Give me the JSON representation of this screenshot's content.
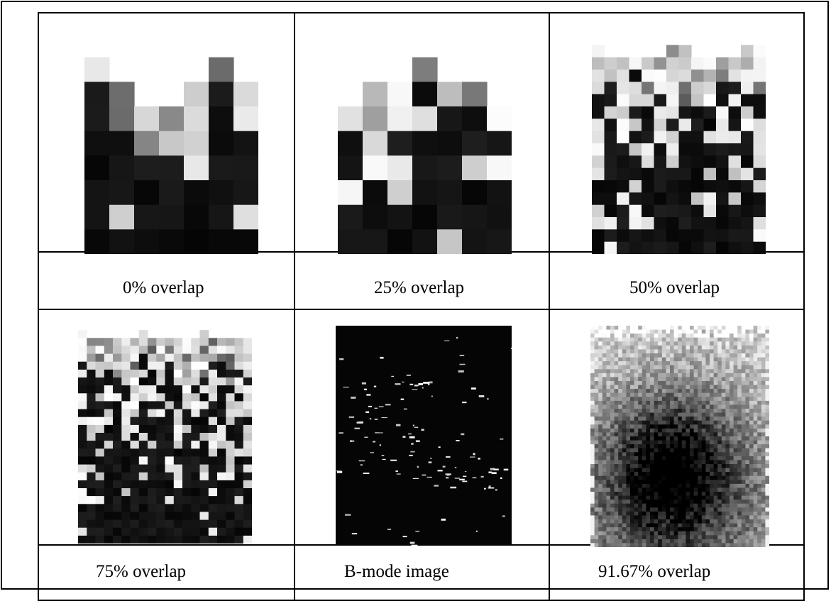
{
  "figure": {
    "panels": [
      {
        "caption": "0% overlap"
      },
      {
        "caption": "25% overlap"
      },
      {
        "caption": "50% overlap"
      },
      {
        "caption": "75% overlap"
      },
      {
        "caption": "B-mode image"
      },
      {
        "caption": "91.67% overlap"
      }
    ]
  }
}
